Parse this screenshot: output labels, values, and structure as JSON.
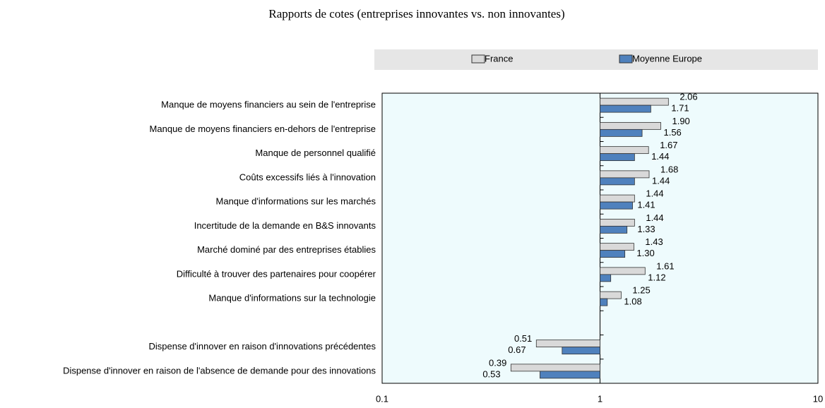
{
  "chart_data": {
    "type": "bar",
    "orientation": "horizontal",
    "title": "Rapports de cotes (entreprises innovantes vs. non innovantes)",
    "categories": [
      "Manque de moyens financiers au sein de l'entreprise",
      "Manque de moyens financiers en-dehors de l'entreprise",
      "Manque de personnel qualifié",
      "Coûts excessifs liés à l'innovation",
      "Manque d'informations sur les marchés",
      "Incertitude de la demande en B&S innovants",
      "Marché dominé par des entreprises établies",
      "Difficulté à trouver des partenaires pour coopérer",
      "Manque d'informations sur la technologie",
      null,
      "Dispense d'innover en raison d'innovations précédentes",
      "Dispense d'innover en raison de l'absence de demande pour des innovations"
    ],
    "series": [
      {
        "name": "France",
        "color": "#d9d9d9",
        "values": [
          2.06,
          1.9,
          1.67,
          1.68,
          1.44,
          1.44,
          1.43,
          1.61,
          1.25,
          null,
          0.51,
          0.39
        ],
        "value_labels": [
          "2.06",
          "1.90",
          "1.67",
          "1.68",
          "1.44",
          "1.44",
          "1.43",
          "1.61",
          "1.25",
          null,
          "0.51",
          "0.39"
        ]
      },
      {
        "name": "Moyenne Europe",
        "color": "#4f81bd",
        "values": [
          1.71,
          1.56,
          1.44,
          1.44,
          1.41,
          1.33,
          1.3,
          1.12,
          1.08,
          null,
          0.67,
          0.53
        ],
        "value_labels": [
          "1.71",
          "1.56",
          "1.44",
          "1.44",
          "1.41",
          "1.33",
          "1.30",
          "1.12",
          "1.08",
          null,
          "0.67",
          "0.53"
        ]
      }
    ],
    "xscale": "log",
    "xlim": [
      0.1,
      10
    ],
    "xticks": [
      0.1,
      1,
      10
    ]
  }
}
